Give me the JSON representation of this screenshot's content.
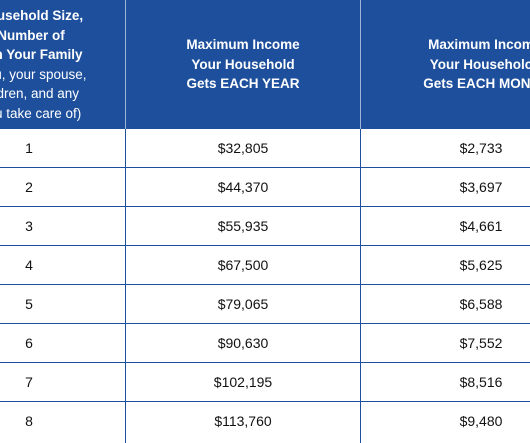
{
  "header": {
    "col1": {
      "lines": [
        {
          "text": "Household Size,",
          "bold": true
        },
        {
          "text": "Number of",
          "bold": true
        },
        {
          "text": "e in Your Family",
          "bold": true
        },
        {
          "text": "(you, your spouse,",
          "bold": false
        },
        {
          "text": "hildren, and any",
          "bold": false
        },
        {
          "text": "you take care of)",
          "bold": false
        }
      ]
    },
    "col2": {
      "line1": "Maximum Income",
      "line2": "Your Household",
      "line3_prefix": "Gets ",
      "line3_bold": "EACH YEAR"
    },
    "col3": {
      "line1": "Maximum Incom",
      "line2": "Your Householc",
      "line3_prefix": "Gets ",
      "line3_bold": "EACH MONT"
    }
  },
  "rows": [
    {
      "size": "1",
      "year": "$32,805",
      "month": "$2,733"
    },
    {
      "size": "2",
      "year": "$44,370",
      "month": "$3,697"
    },
    {
      "size": "3",
      "year": "$55,935",
      "month": "$4,661"
    },
    {
      "size": "4",
      "year": "$67,500",
      "month": "$5,625"
    },
    {
      "size": "5",
      "year": "$79,065",
      "month": "$6,588"
    },
    {
      "size": "6",
      "year": "$90,630",
      "month": "$7,552"
    },
    {
      "size": "7",
      "year": "$102,195",
      "month": "$8,516"
    },
    {
      "size": "8",
      "year": "$113,760",
      "month": "$9,480"
    }
  ],
  "colors": {
    "header_bg": "#1d4f9c",
    "header_text": "#ffffff",
    "border": "#1d4f9c",
    "cell_text": "#111111"
  }
}
